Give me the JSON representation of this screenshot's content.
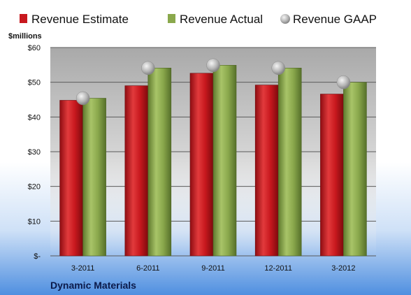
{
  "chart_data": {
    "type": "bar",
    "title": "Dynamic Materials",
    "ylabel": "$millions",
    "categories": [
      "3-2011",
      "6-2011",
      "9-2011",
      "12-2011",
      "3-2012"
    ],
    "series": [
      {
        "name": "Revenue Estimate",
        "type": "bar",
        "values": [
          44.8,
          49.0,
          52.6,
          49.2,
          46.6
        ]
      },
      {
        "name": "Revenue Actual",
        "type": "bar",
        "values": [
          45.4,
          54.1,
          54.9,
          54.1,
          50.0
        ]
      },
      {
        "name": "Revenue GAAP",
        "type": "scatter",
        "values": [
          45.4,
          54.1,
          54.9,
          54.1,
          50.0
        ]
      }
    ],
    "ylim": [
      0,
      60
    ],
    "yticks": [
      0,
      10,
      20,
      30,
      40,
      50,
      60
    ],
    "ytick_labels": [
      "$-",
      "$10",
      "$20",
      "$30",
      "$40",
      "$50",
      "$60"
    ],
    "grid": true,
    "legend": "top",
    "colors": {
      "estimate": "#c8181e",
      "actual": "#8aa84c",
      "gaap": "#a9a9a9"
    }
  }
}
